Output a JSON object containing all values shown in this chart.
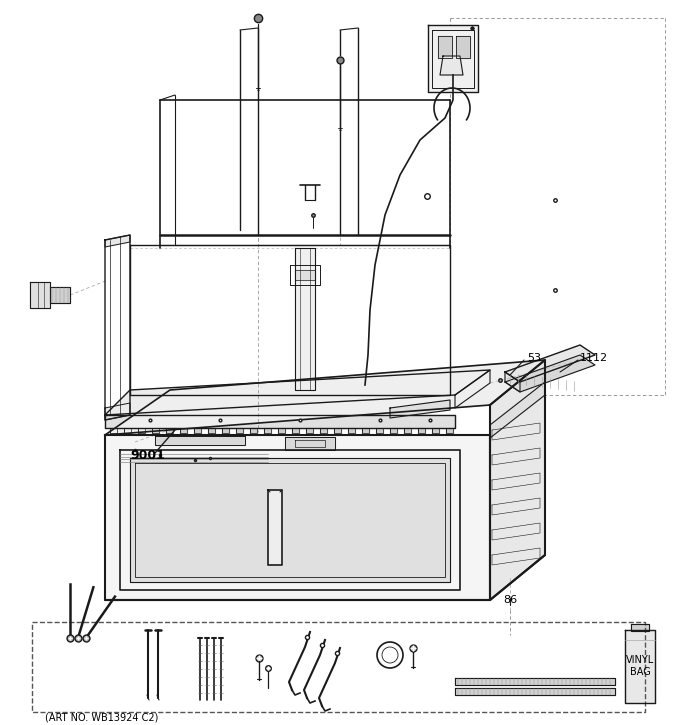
{
  "bg_color": "#ffffff",
  "line_color": "#1a1a1a",
  "label_9001": "9001",
  "label_53": "53",
  "label_1112": "1112",
  "label_86": "86",
  "label_art": "(ART NO. WB13924 C2)",
  "fig_width": 6.8,
  "fig_height": 7.25,
  "dpi": 100
}
